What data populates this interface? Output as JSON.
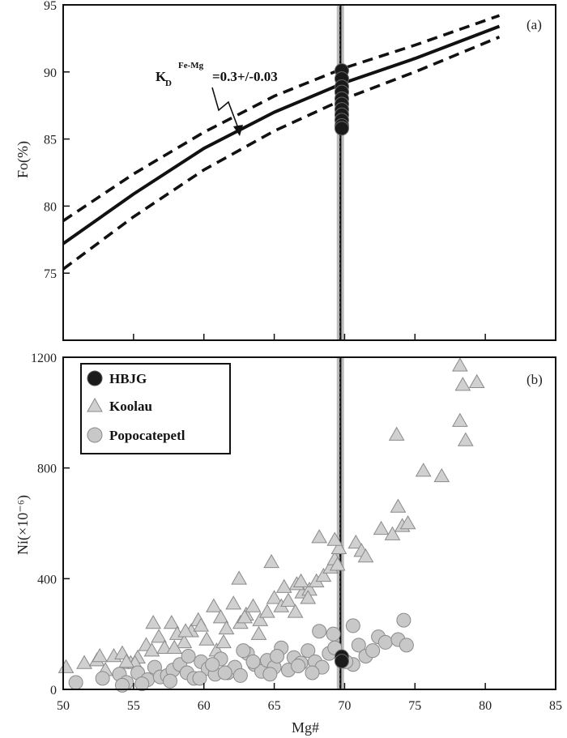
{
  "chart_data": [
    {
      "panel": "(a)",
      "type": "line",
      "xlabel": "",
      "ylabel": "Fo(%)",
      "xlim": [
        50,
        85
      ],
      "ylim": [
        70,
        95
      ],
      "y_ticks": [
        "75",
        "80",
        "85",
        "90",
        "95"
      ],
      "annotation": {
        "text": "K",
        "sub": "D",
        "sup": "Fe-Mg",
        "rest": "=0.3+/-0.03"
      },
      "series": [
        {
          "style": "solid",
          "x": [
            50,
            55,
            60,
            65,
            70,
            75,
            81
          ],
          "y": [
            77.2,
            80.9,
            84.3,
            87.0,
            89.2,
            91.0,
            93.4
          ]
        },
        {
          "style": "dashed",
          "x": [
            50,
            55,
            60,
            65,
            70,
            75,
            81
          ],
          "y": [
            78.9,
            82.4,
            85.5,
            88.2,
            90.3,
            92.0,
            94.2
          ]
        },
        {
          "style": "dashed",
          "x": [
            50,
            55,
            60,
            65,
            70,
            75,
            81
          ],
          "y": [
            75.3,
            79.2,
            82.7,
            85.6,
            88.0,
            90.0,
            92.6
          ]
        }
      ],
      "scatter": {
        "name": "HBJG",
        "x": [
          69.8,
          69.8,
          69.8,
          69.8,
          69.8,
          69.8,
          69.8,
          69.8,
          69.8,
          69.8,
          69.8
        ],
        "y": [
          90.1,
          89.5,
          88.9,
          88.5,
          88.0,
          87.6,
          87.2,
          86.8,
          86.4,
          86.0,
          85.8
        ]
      },
      "vline": {
        "x": 69.7
      }
    },
    {
      "panel": "(b)",
      "type": "scatter",
      "xlabel": "Mg#",
      "ylabel": "Ni(×10⁻⁶)",
      "xlim": [
        50,
        85
      ],
      "ylim": [
        0,
        1200
      ],
      "x_ticks": [
        "50",
        "55",
        "60",
        "65",
        "70",
        "75",
        "80",
        "85"
      ],
      "y_ticks": [
        "0",
        "400",
        "800",
        "1200"
      ],
      "legend_position": "top-left",
      "vline": {
        "x": 69.7
      },
      "series": [
        {
          "name": "Koolau",
          "marker": "triangle",
          "color": "#d0d0d0",
          "x": [
            50.2,
            51.5,
            52.4,
            53.0,
            53.6,
            54.2,
            54.8,
            55.3,
            55.9,
            56.3,
            56.8,
            57.2,
            57.7,
            58.1,
            58.6,
            59.1,
            59.6,
            60.2,
            60.7,
            61.2,
            61.6,
            62.1,
            62.6,
            63.0,
            63.5,
            64.0,
            64.5,
            65.0,
            65.5,
            66.0,
            66.5,
            67.0,
            67.5,
            68.0,
            68.5,
            69.0,
            69.3,
            69.6,
            70.8,
            71.2,
            71.5,
            72.6,
            73.4,
            73.7,
            74.1,
            74.5,
            75.6,
            76.9,
            73.8,
            78.2,
            78.4,
            78.6,
            79.4,
            78.2,
            68.2,
            69.3,
            69.5,
            66.6,
            64.8,
            62.5,
            58.7,
            56.4,
            57.9,
            52.6,
            55.1,
            60.9,
            62.9,
            66.9,
            67.4,
            65.7,
            63.9,
            61.4,
            59.8,
            54.5
          ],
          "y": [
            80,
            95,
            105,
            70,
            120,
            130,
            95,
            115,
            160,
            140,
            190,
            150,
            240,
            200,
            170,
            210,
            250,
            180,
            300,
            260,
            220,
            310,
            240,
            270,
            300,
            250,
            280,
            330,
            300,
            320,
            280,
            350,
            360,
            390,
            410,
            440,
            470,
            510,
            530,
            500,
            480,
            580,
            560,
            920,
            590,
            600,
            790,
            770,
            660,
            1170,
            1100,
            900,
            1110,
            970,
            550,
            540,
            450,
            380,
            460,
            400,
            210,
            240,
            150,
            120,
            95,
            140,
            260,
            390,
            330,
            370,
            200,
            170,
            230,
            100
          ]
        },
        {
          "name": "Popocatepetl",
          "marker": "circle",
          "color": "#c8c8c8",
          "x": [
            50.9,
            52.8,
            54.0,
            54.5,
            55.3,
            56.0,
            56.5,
            56.9,
            57.4,
            57.8,
            58.3,
            58.8,
            59.3,
            59.8,
            60.3,
            60.8,
            61.2,
            61.7,
            62.2,
            62.6,
            63.1,
            63.6,
            64.1,
            64.5,
            65.0,
            65.5,
            66.0,
            66.4,
            66.9,
            67.4,
            67.9,
            68.4,
            68.9,
            69.3,
            70.6,
            71.0,
            71.5,
            72.0,
            72.4,
            72.9,
            73.8,
            74.2,
            74.4,
            70.6,
            68.2,
            69.2,
            70.1,
            65.2,
            63.5,
            61.5,
            59.7,
            57.6,
            55.6,
            54.2,
            58.9,
            60.6,
            62.8,
            66.7,
            67.7,
            64.7
          ],
          "y": [
            25,
            40,
            55,
            25,
            60,
            35,
            80,
            45,
            50,
            70,
            90,
            60,
            40,
            100,
            75,
            55,
            110,
            60,
            80,
            50,
            130,
            90,
            65,
            105,
            80,
            150,
            70,
            115,
            95,
            140,
            100,
            80,
            130,
            150,
            90,
            160,
            120,
            140,
            190,
            170,
            180,
            250,
            160,
            230,
            210,
            200,
            100,
            120,
            100,
            60,
            40,
            30,
            20,
            15,
            120,
            90,
            140,
            85,
            60,
            55
          ]
        },
        {
          "name": "HBJG",
          "marker": "circle",
          "color": "#1a1a1a",
          "x": [
            69.8,
            69.8
          ],
          "y": [
            118,
            102
          ]
        }
      ]
    }
  ]
}
